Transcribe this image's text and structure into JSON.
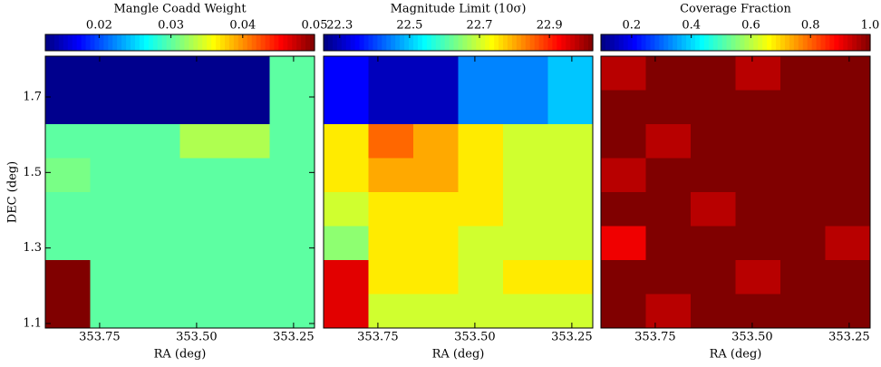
{
  "chart_data": [
    {
      "type": "heatmap",
      "title": "Mangle Coadd Weight",
      "xlabel": "RA (deg)",
      "ylabel": "DEC (deg)",
      "xlim": [
        353.89,
        353.196
      ],
      "xticks": [
        353.75,
        {
          "value": 353.5,
          "label": "353.50"
        },
        353.25
      ],
      "ylim": [
        1.088,
        1.808
      ],
      "yticks": [
        1.1,
        1.3,
        1.5,
        1.7
      ],
      "clim": [
        0.0125,
        0.05
      ],
      "cticks": [
        0.02,
        0.03,
        0.04,
        0.05
      ],
      "values": [
        [
          0.013,
          0.013,
          0.013,
          0.013,
          0.013,
          0.03
        ],
        [
          0.013,
          0.013,
          0.013,
          0.013,
          0.013,
          0.03
        ],
        [
          0.03,
          0.03,
          0.03,
          0.033,
          0.033,
          0.03
        ],
        [
          0.031,
          0.03,
          0.03,
          0.03,
          0.03,
          0.03
        ],
        [
          0.03,
          0.03,
          0.03,
          0.03,
          0.03,
          0.03
        ],
        [
          0.03,
          0.03,
          0.03,
          0.03,
          0.03,
          0.03
        ],
        [
          0.05,
          0.03,
          0.03,
          0.03,
          0.03,
          0.03
        ],
        [
          0.05,
          0.03,
          0.03,
          0.03,
          0.03,
          0.03
        ]
      ]
    },
    {
      "type": "heatmap",
      "title": "Magnitude Limit (10σ)",
      "xlabel": "RA (deg)",
      "xlim": [
        353.89,
        353.196
      ],
      "xticks": [
        353.75,
        {
          "value": 353.5,
          "label": "353.50"
        },
        353.25
      ],
      "ylim": [
        1.088,
        1.808
      ],
      "clim": [
        22.254,
        23.024
      ],
      "cticks": [
        22.3,
        22.5,
        22.7,
        22.9
      ],
      "values": [
        [
          22.35,
          22.3,
          22.3,
          22.45,
          22.45,
          22.5
        ],
        [
          22.35,
          22.3,
          22.3,
          22.45,
          22.45,
          22.5
        ],
        [
          22.75,
          22.85,
          22.8,
          22.75,
          22.7,
          22.7
        ],
        [
          22.75,
          22.8,
          22.8,
          22.75,
          22.7,
          22.7
        ],
        [
          22.7,
          22.75,
          22.75,
          22.75,
          22.7,
          22.7
        ],
        [
          22.65,
          22.75,
          22.75,
          22.7,
          22.7,
          22.7
        ],
        [
          22.95,
          22.75,
          22.75,
          22.7,
          22.75,
          22.75
        ],
        [
          22.95,
          22.7,
          22.7,
          22.7,
          22.7,
          22.7
        ]
      ]
    },
    {
      "type": "heatmap",
      "title": "Coverage Fraction",
      "xlabel": "RA (deg)",
      "xlim": [
        353.89,
        353.196
      ],
      "xticks": [
        353.75,
        {
          "value": 353.5,
          "label": "353.50"
        },
        353.25
      ],
      "ylim": [
        1.088,
        1.808
      ],
      "clim": [
        0.097,
        1.0
      ],
      "cticks": [
        0.2,
        0.4,
        0.6,
        0.8,
        {
          "value": 1,
          "label": "1.0"
        }
      ],
      "values": [
        [
          0.95,
          1,
          1,
          0.95,
          1,
          1
        ],
        [
          1,
          1,
          1,
          1,
          1,
          1
        ],
        [
          1,
          0.95,
          1,
          1,
          1,
          1
        ],
        [
          0.95,
          1,
          1,
          1,
          1,
          1
        ],
        [
          1,
          1,
          0.95,
          1,
          1,
          1
        ],
        [
          0.9,
          1,
          1,
          1,
          1,
          0.95
        ],
        [
          1,
          1,
          1,
          0.95,
          1,
          1
        ],
        [
          1,
          0.95,
          1,
          1,
          1,
          1
        ]
      ]
    }
  ]
}
